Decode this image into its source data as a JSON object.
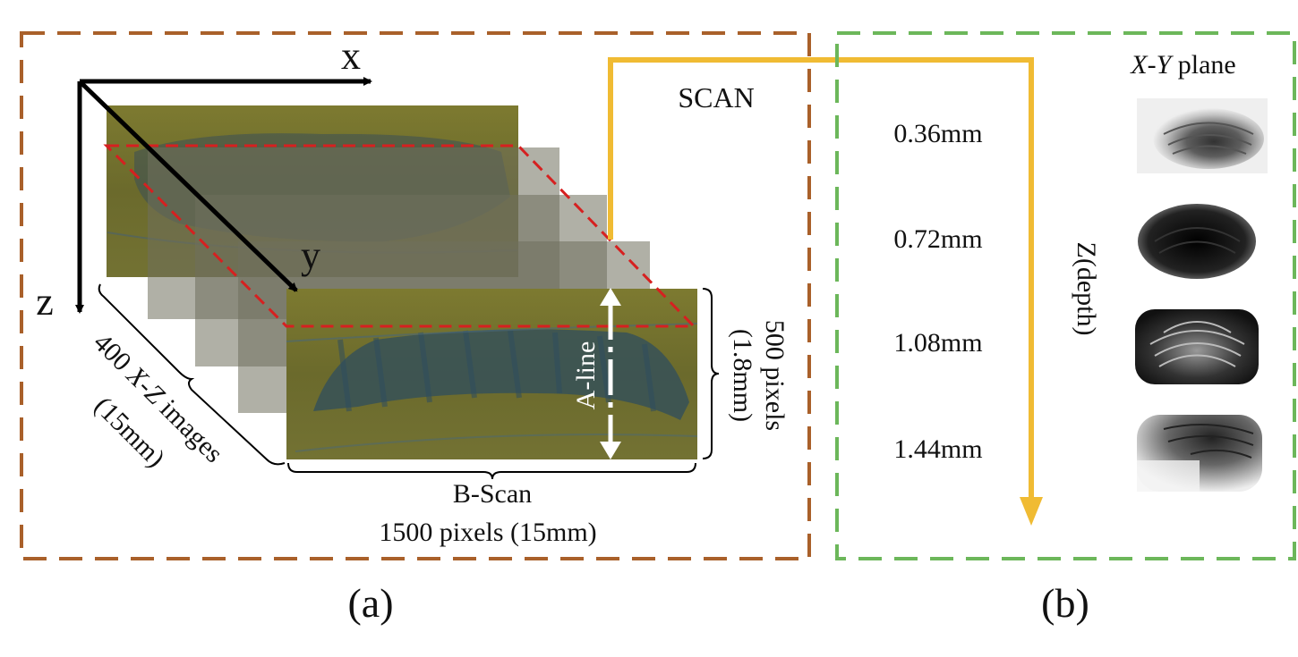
{
  "colors": {
    "panel_a_border": "#a9602a",
    "panel_b_border": "#6cb75a",
    "scan_arrow": "#f0bb33",
    "cut_plane": "#d62020",
    "bscan_fill": "#6f6d2c",
    "tissue": "#2f4d5e"
  },
  "panel_a": {
    "axis_x": "x",
    "axis_y": "y",
    "axis_z": "z",
    "scan_label": "SCAN",
    "aline_label": "A-line",
    "depth_pixels": "500 pixels",
    "depth_mm": "(1.8mm)",
    "bscan_label": "B-Scan",
    "bscan_size": "1500 pixels (15mm)",
    "stack_count_prefix": "400 ",
    "stack_count_italic": "X-Z",
    "stack_count_suffix": " images",
    "stack_size": "(15mm)",
    "caption": "(a)"
  },
  "panel_b": {
    "plane_label_italic": "X-Y",
    "plane_label_suffix": " plane",
    "depth_axis_label": "Z(depth)",
    "depths": [
      "0.36mm",
      "0.72mm",
      "1.08mm",
      "1.44mm"
    ],
    "slice_icons": [
      "fingerprint-surface-icon",
      "fingerprint-dark-icon",
      "fingerprint-ridges-icon",
      "fingerprint-partial-icon"
    ],
    "caption": "(b)"
  }
}
